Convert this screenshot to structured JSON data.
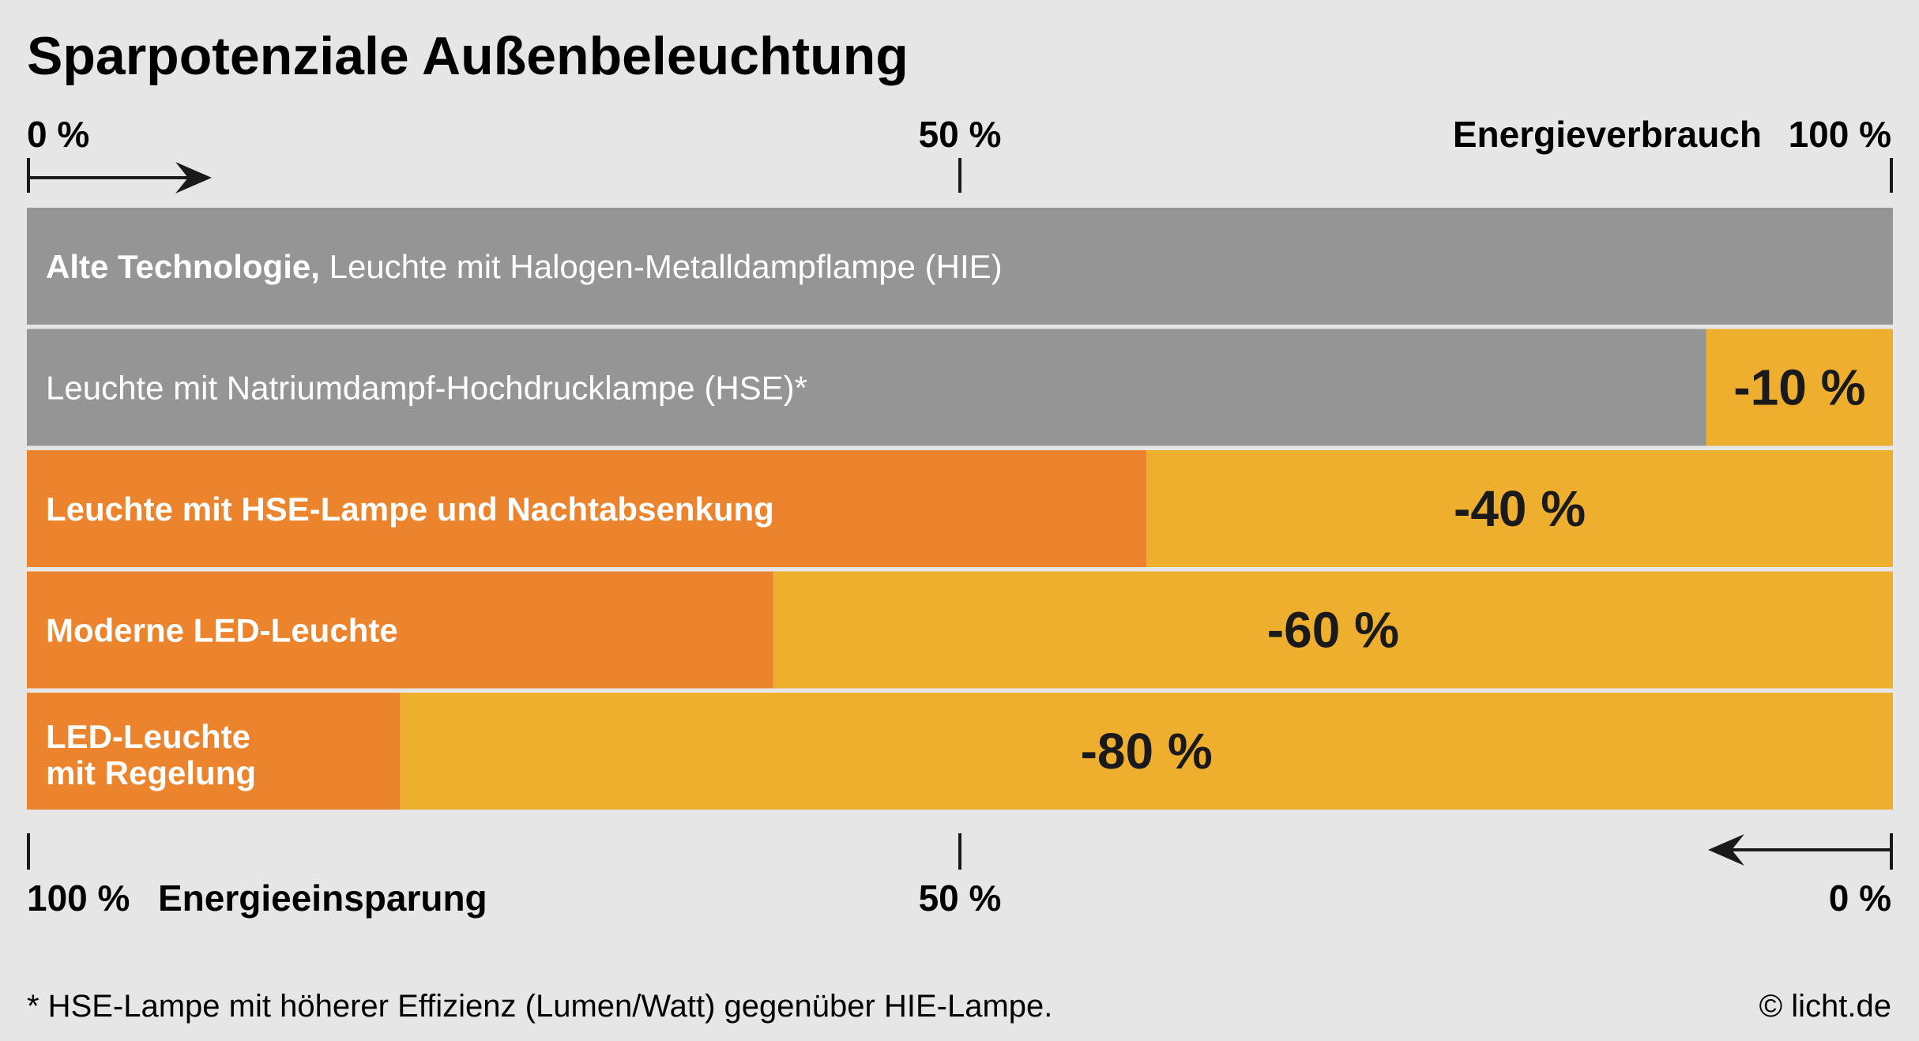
{
  "title": "Sparpotenziale Außenbeleuchtung",
  "top_axis": {
    "label": "Energieverbrauch",
    "ticks": [
      "0 %",
      "50 %",
      "100 %"
    ]
  },
  "bottom_axis": {
    "label": "Energieeinsparung",
    "ticks": [
      "100 %",
      "50 %",
      "0 %"
    ]
  },
  "footnote": "* HSE-Lampe mit höherer Effizienz (Lumen/Watt) gegenüber HIE-Lampe.",
  "copyright": "© licht.de",
  "colors": {
    "old_tech": "#959595",
    "consumption": "#ec842e",
    "saving": "#eeae2e",
    "background": "#e6e6e6",
    "text": "#1a1a1a"
  },
  "chart_data": {
    "type": "bar",
    "orientation": "horizontal-stacked",
    "xlim": [
      0,
      100
    ],
    "unit": "%",
    "series": [
      {
        "name": "Energieverbrauch"
      },
      {
        "name": "Energieeinsparung"
      }
    ],
    "bars": [
      {
        "label_bold": "Alte Technologie,",
        "label": " Leuchte mit Halogen-Metalldampflampe (HIE)",
        "consumption": 100,
        "saving": 0,
        "saving_label": "",
        "style": "old"
      },
      {
        "label_bold": "",
        "label": "Leuchte mit Natriumdampf-Hochdrucklampe (HSE)*",
        "consumption": 90,
        "saving": 10,
        "saving_label": "-10 %",
        "style": "old"
      },
      {
        "label_bold": "Leuchte mit HSE-Lampe und Nachtabsenkung",
        "label": "",
        "consumption": 60,
        "saving": 40,
        "saving_label": "-40 %",
        "style": "new"
      },
      {
        "label_bold": "Moderne LED-Leuchte",
        "label": "",
        "consumption": 40,
        "saving": 60,
        "saving_label": "-60 %",
        "style": "new"
      },
      {
        "label_bold": "LED-Leuchte\nmit Regelung",
        "label": "",
        "consumption": 20,
        "saving": 80,
        "saving_label": "-80 %",
        "style": "new"
      }
    ]
  }
}
